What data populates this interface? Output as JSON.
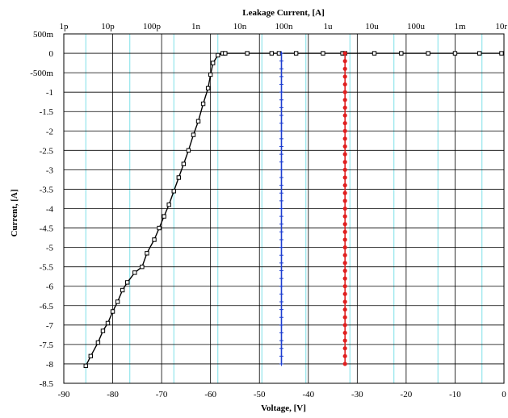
{
  "chart_data": {
    "type": "scatter",
    "title": "",
    "top_axis": {
      "label": "Leakage Current, [A]",
      "scale": "log",
      "tick_labels": [
        "1p",
        "10p",
        "100p",
        "1n",
        "10n",
        "100n",
        "1u",
        "10u",
        "100u",
        "1m",
        "10r"
      ],
      "range": [
        "1p",
        "10m"
      ]
    },
    "xlabel": "Voltage, [V]",
    "ylabel": "Current, [A]",
    "xlim": [
      -90,
      0
    ],
    "ylim": [
      -8.5,
      0.5
    ],
    "x_tick_labels": [
      "-90",
      "-80",
      "-70",
      "-60",
      "-50",
      "-40",
      "-30",
      "-20",
      "-10",
      "0"
    ],
    "y_tick_labels": [
      "500m",
      "0",
      "-500m",
      "-1",
      "-1.5",
      "-2",
      "-2.5",
      "-3",
      "-3.5",
      "-4",
      "-4.5",
      "-5",
      "-5.5",
      "-6",
      "-6.5",
      "-7",
      "-7.5",
      "-8",
      "-8.5"
    ],
    "grid": true,
    "grid_colors": {
      "major": "#000000",
      "minor": "#7fe0e8"
    },
    "series": [
      {
        "color": "#000000",
        "marker": "square",
        "x": [
          -85.5,
          -84.5,
          -83,
          -82,
          -81,
          -80,
          -79,
          -78,
          -77,
          -75.5,
          -74,
          -73,
          -71.5,
          -70.5,
          -69.5,
          -68.5,
          -67.5,
          -66.5,
          -65.5,
          -64.5,
          -63.5,
          -62.5,
          -61.5,
          -60.5,
          -60,
          -59.5,
          -58.5,
          -57.5,
          -57,
          -52.5,
          -47.5,
          -46,
          -42.5,
          -37,
          -33,
          -32.5,
          -26.5,
          -21,
          -15.5,
          -10,
          -5,
          -0.5
        ],
        "y": [
          -8.05,
          -7.8,
          -7.45,
          -7.15,
          -6.95,
          -6.65,
          -6.4,
          -6.1,
          -5.9,
          -5.65,
          -5.5,
          -5.15,
          -4.8,
          -4.5,
          -4.2,
          -3.9,
          -3.55,
          -3.2,
          -2.85,
          -2.5,
          -2.1,
          -1.75,
          -1.3,
          -0.9,
          -0.55,
          -0.25,
          -0.05,
          0,
          0,
          0,
          0,
          0,
          0,
          0,
          0,
          0,
          0,
          0,
          0,
          0,
          0,
          0
        ]
      },
      {
        "color": "#1f3fd0",
        "marker": "plus",
        "x": [
          -45.5,
          -45.5,
          -45.5,
          -45.5,
          -45.5,
          -45.5,
          -45.5,
          -45.5,
          -45.5,
          -45.5,
          -45.5,
          -45.5,
          -45.5,
          -45.5,
          -45.5,
          -45.5,
          -45.5,
          -45.5,
          -45.5,
          -45.5,
          -45.5,
          -45.5,
          -45.5,
          -45.5,
          -45.5,
          -45.5,
          -45.5,
          -45.5,
          -45.5,
          -45.5,
          -45.5,
          -45.5,
          -45.5,
          -45.5,
          -45.5,
          -45.5,
          -45.5,
          -45.5,
          -45.5,
          -45.5,
          -45.5
        ],
        "y": [
          0,
          -0.2,
          -0.4,
          -0.6,
          -0.8,
          -1,
          -1.2,
          -1.4,
          -1.6,
          -1.8,
          -2,
          -2.2,
          -2.4,
          -2.6,
          -2.8,
          -3,
          -3.2,
          -3.4,
          -3.6,
          -3.8,
          -4,
          -4.2,
          -4.4,
          -4.6,
          -4.8,
          -5,
          -5.2,
          -5.4,
          -5.6,
          -5.8,
          -6,
          -6.2,
          -6.4,
          -6.6,
          -6.8,
          -7,
          -7.2,
          -7.4,
          -7.6,
          -7.8,
          -8
        ]
      },
      {
        "color": "#e02020",
        "marker": "circle",
        "x": [
          -32.5,
          -32.5,
          -32.5,
          -32.5,
          -32.5,
          -32.5,
          -32.5,
          -32.5,
          -32.5,
          -32.5,
          -32.5,
          -32.5,
          -32.5,
          -32.5,
          -32.5,
          -32.5,
          -32.5,
          -32.5,
          -32.5,
          -32.5,
          -32.5,
          -32.5,
          -32.5,
          -32.5,
          -32.5,
          -32.5,
          -32.5,
          -32.5,
          -32.5,
          -32.5,
          -32.5,
          -32.5,
          -32.5,
          -32.5,
          -32.5,
          -32.5,
          -32.5,
          -32.5,
          -32.5,
          -32.5,
          -32.5
        ],
        "y": [
          0,
          -0.2,
          -0.4,
          -0.6,
          -0.8,
          -1,
          -1.2,
          -1.4,
          -1.6,
          -1.8,
          -2,
          -2.2,
          -2.4,
          -2.6,
          -2.8,
          -3,
          -3.2,
          -3.4,
          -3.6,
          -3.8,
          -4,
          -4.2,
          -4.4,
          -4.6,
          -4.8,
          -5,
          -5.2,
          -5.4,
          -5.6,
          -5.8,
          -6,
          -6.2,
          -6.4,
          -6.6,
          -6.8,
          -7,
          -7.2,
          -7.4,
          -7.6,
          -7.8,
          -8
        ]
      }
    ]
  }
}
